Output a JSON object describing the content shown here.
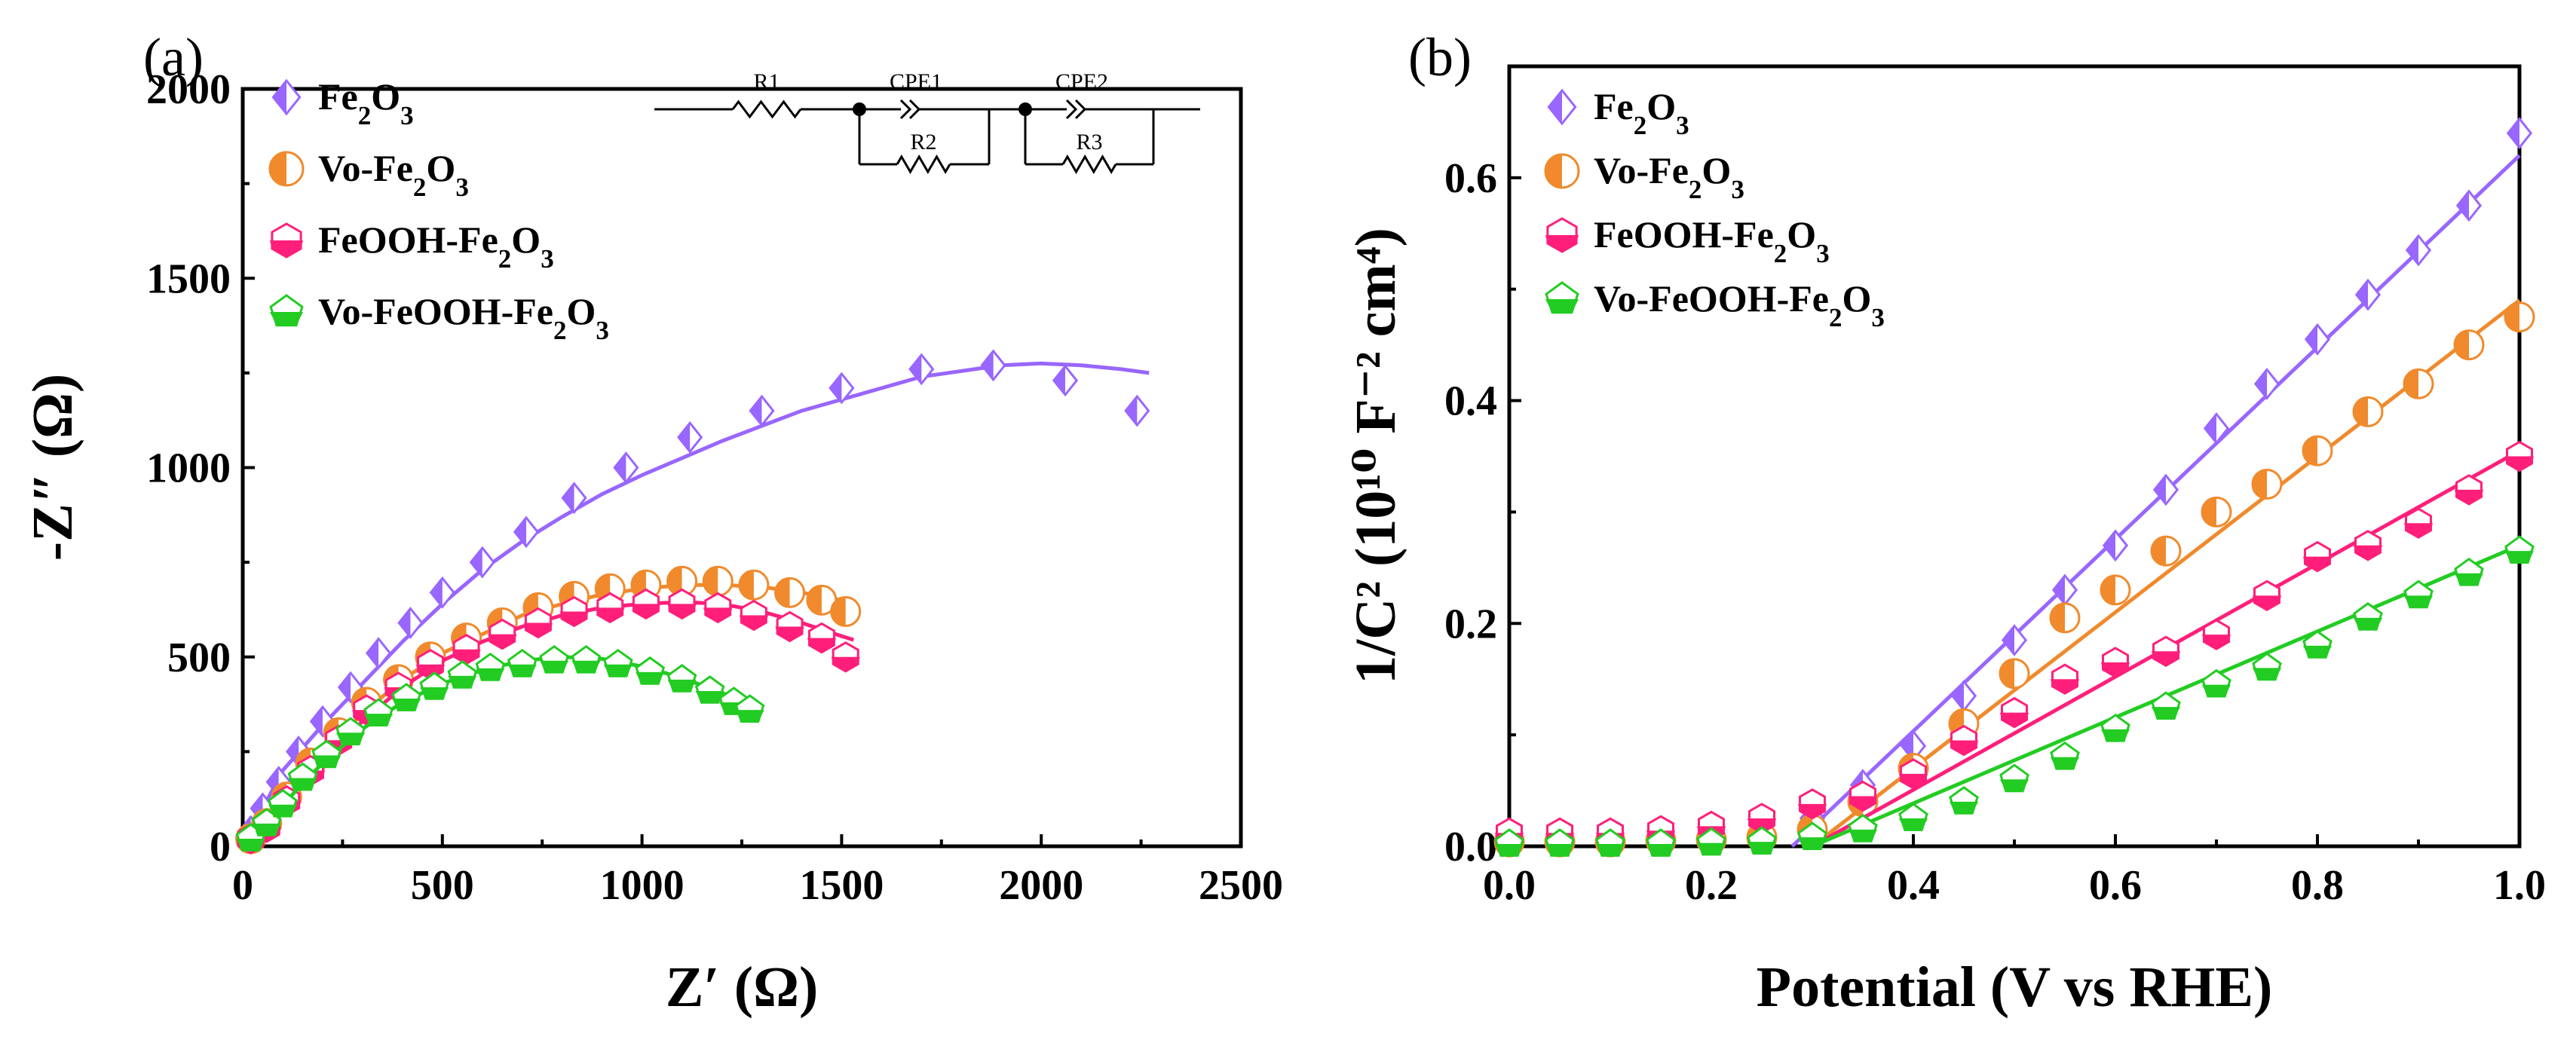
{
  "colors": {
    "Fe2O3": "#9966ff",
    "Vo-Fe2O3": "#f08a2c",
    "FeOOH-Fe2O3": "#ff1f7a",
    "Vo-FeOOH-Fe2O3": "#22cc22"
  },
  "chart_data": [
    {
      "type": "scatter",
      "panel_label": "(a)",
      "xlabel": "Z′ (Ω)",
      "ylabel": "-Z″ (Ω)",
      "xlim": [
        0,
        2500
      ],
      "ylim": [
        0,
        2000
      ],
      "xticks": [
        "0",
        "500",
        "1000",
        "1500",
        "2000",
        "2500"
      ],
      "yticks": [
        "0",
        "500",
        "1000",
        "1500",
        "2000"
      ],
      "legend_position": "top-left",
      "circuit_labels": [
        "R1",
        "CPE1",
        "CPE2",
        "R2",
        "R3"
      ],
      "series": [
        {
          "name": "Fe2O3",
          "marker": "diamond",
          "x": [
            20,
            50,
            90,
            140,
            200,
            270,
            340,
            420,
            500,
            600,
            710,
            830,
            960,
            1120,
            1300,
            1500,
            1700,
            1880,
            2060,
            2240
          ],
          "y": [
            40,
            100,
            170,
            250,
            330,
            420,
            510,
            590,
            670,
            750,
            830,
            920,
            1000,
            1080,
            1150,
            1210,
            1260,
            1270,
            1230,
            1150
          ],
          "fit": {
            "x": [
              0,
              100,
              200,
              300,
              400,
              500,
              600,
              700,
              800,
              900,
              1000,
              1100,
              1200,
              1300,
              1400,
              1500,
              1600,
              1700,
              1800,
              1900,
              2000,
              2100,
              2200,
              2270
            ],
            "y": [
              0,
              200,
              320,
              430,
              540,
              640,
              730,
              805,
              870,
              930,
              980,
              1025,
              1070,
              1110,
              1150,
              1180,
              1210,
              1240,
              1255,
              1270,
              1275,
              1270,
              1260,
              1250
            ]
          }
        },
        {
          "name": "Vo-Fe2O3",
          "marker": "half-circle",
          "x": [
            20,
            60,
            110,
            170,
            240,
            310,
            390,
            470,
            560,
            650,
            740,
            830,
            920,
            1010,
            1100,
            1190,
            1280,
            1370,
            1450,
            1510
          ],
          "y": [
            20,
            60,
            130,
            220,
            300,
            380,
            440,
            500,
            550,
            590,
            630,
            660,
            680,
            690,
            700,
            700,
            690,
            670,
            650,
            620
          ],
          "fit": {
            "x": [
              0,
              100,
              200,
              300,
              400,
              500,
              600,
              700,
              800,
              900,
              1000,
              1100,
              1200,
              1300,
              1400,
              1500,
              1530
            ],
            "y": [
              0,
              120,
              250,
              350,
              440,
              510,
              560,
              610,
              640,
              665,
              680,
              690,
              690,
              685,
              670,
              650,
              645
            ]
          }
        },
        {
          "name": "FeOOH-Fe2O3",
          "marker": "half-hexagon",
          "x": [
            20,
            60,
            110,
            170,
            240,
            310,
            390,
            470,
            560,
            650,
            740,
            830,
            920,
            1010,
            1100,
            1190,
            1280,
            1370,
            1450,
            1510
          ],
          "y": [
            20,
            50,
            120,
            200,
            280,
            360,
            420,
            480,
            520,
            560,
            590,
            620,
            630,
            640,
            640,
            630,
            610,
            580,
            550,
            500
          ],
          "fit": {
            "x": [
              0,
              100,
              200,
              300,
              400,
              500,
              600,
              700,
              800,
              900,
              1000,
              1100,
              1200,
              1300,
              1400,
              1500,
              1530
            ],
            "y": [
              0,
              110,
              230,
              330,
              420,
              490,
              540,
              580,
              610,
              630,
              640,
              645,
              640,
              620,
              590,
              555,
              545
            ]
          }
        },
        {
          "name": "Vo-FeOOH-Fe2O3",
          "marker": "half-pentagon",
          "x": [
            20,
            60,
            100,
            150,
            210,
            270,
            340,
            410,
            480,
            550,
            620,
            700,
            780,
            860,
            940,
            1020,
            1100,
            1170,
            1230,
            1270
          ],
          "y": [
            20,
            60,
            110,
            180,
            240,
            300,
            350,
            390,
            420,
            450,
            470,
            480,
            490,
            490,
            480,
            460,
            440,
            410,
            380,
            360
          ],
          "fit": {
            "x": [
              0,
              100,
              200,
              300,
              400,
              500,
              600,
              700,
              800,
              900,
              1000,
              1100,
              1200,
              1290
            ],
            "y": [
              0,
              110,
              220,
              310,
              380,
              430,
              465,
              490,
              500,
              495,
              475,
              445,
              405,
              365
            ]
          }
        }
      ]
    },
    {
      "type": "scatter",
      "panel_label": "(b)",
      "xlabel": "Potential (V vs RHE)",
      "ylabel": "1/C² (10¹⁰ F⁻² cm⁴)",
      "xlim": [
        0,
        1
      ],
      "ylim": [
        0,
        0.7
      ],
      "xticks": [
        "0.0",
        "0.2",
        "0.4",
        "0.6",
        "0.8",
        "1.0"
      ],
      "yticks": [
        "0.0",
        "0.2",
        "0.4",
        "0.6"
      ],
      "legend_position": "top-left",
      "series": [
        {
          "name": "Fe2O3",
          "marker": "diamond",
          "x": [
            0.0,
            0.05,
            0.1,
            0.15,
            0.2,
            0.25,
            0.3,
            0.35,
            0.4,
            0.45,
            0.5,
            0.55,
            0.6,
            0.65,
            0.7,
            0.75,
            0.8,
            0.85,
            0.9,
            0.95,
            1.0
          ],
          "y": [
            0.005,
            0.005,
            0.005,
            0.006,
            0.008,
            0.012,
            0.025,
            0.055,
            0.09,
            0.135,
            0.185,
            0.23,
            0.27,
            0.32,
            0.375,
            0.415,
            0.455,
            0.495,
            0.535,
            0.575,
            0.64
          ],
          "fit": {
            "x": [
              0.28,
              1.0
            ],
            "y": [
              0.0,
              0.62
            ]
          }
        },
        {
          "name": "Vo-Fe2O3",
          "marker": "half-circle",
          "x": [
            0.0,
            0.05,
            0.1,
            0.15,
            0.2,
            0.25,
            0.3,
            0.35,
            0.4,
            0.45,
            0.5,
            0.55,
            0.6,
            0.65,
            0.7,
            0.75,
            0.8,
            0.85,
            0.9,
            0.95,
            1.0
          ],
          "y": [
            0.004,
            0.004,
            0.004,
            0.005,
            0.006,
            0.008,
            0.015,
            0.04,
            0.07,
            0.11,
            0.155,
            0.205,
            0.23,
            0.265,
            0.3,
            0.325,
            0.355,
            0.39,
            0.415,
            0.45,
            0.475
          ],
          "fit": {
            "x": [
              0.3,
              1.0
            ],
            "y": [
              0.0,
              0.49
            ]
          }
        },
        {
          "name": "FeOOH-Fe2O3",
          "marker": "half-hexagon",
          "x": [
            0.0,
            0.05,
            0.1,
            0.15,
            0.2,
            0.25,
            0.3,
            0.35,
            0.4,
            0.45,
            0.5,
            0.55,
            0.6,
            0.65,
            0.7,
            0.75,
            0.8,
            0.85,
            0.9,
            0.95,
            1.0
          ],
          "y": [
            0.012,
            0.012,
            0.012,
            0.014,
            0.018,
            0.025,
            0.038,
            0.045,
            0.065,
            0.095,
            0.12,
            0.15,
            0.165,
            0.175,
            0.19,
            0.225,
            0.26,
            0.27,
            0.29,
            0.32,
            0.35
          ],
          "fit": {
            "x": [
              0.3,
              1.0
            ],
            "y": [
              0.0,
              0.355
            ]
          }
        },
        {
          "name": "Vo-FeOOH-Fe2O3",
          "marker": "half-pentagon",
          "x": [
            0.0,
            0.05,
            0.1,
            0.15,
            0.2,
            0.25,
            0.3,
            0.35,
            0.4,
            0.45,
            0.5,
            0.55,
            0.6,
            0.65,
            0.7,
            0.75,
            0.8,
            0.85,
            0.9,
            0.95,
            1.0
          ],
          "y": [
            0.002,
            0.002,
            0.002,
            0.002,
            0.003,
            0.004,
            0.008,
            0.015,
            0.025,
            0.04,
            0.06,
            0.08,
            0.105,
            0.125,
            0.145,
            0.16,
            0.18,
            0.205,
            0.225,
            0.245,
            0.265
          ],
          "fit": {
            "x": [
              0.3,
              1.0
            ],
            "y": [
              0.0,
              0.27
            ]
          }
        }
      ]
    }
  ]
}
